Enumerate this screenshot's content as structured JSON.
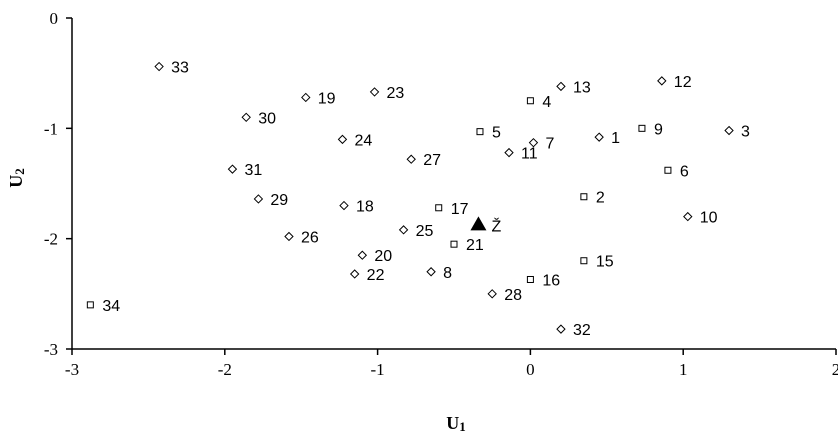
{
  "chart_data": {
    "type": "scatter",
    "xlabel_main": "U",
    "xlabel_sub": "1",
    "ylabel_main": "U",
    "ylabel_sub": "2",
    "xlim": [
      -3,
      2
    ],
    "ylim": [
      -3,
      0
    ],
    "x_ticks": [
      -3,
      -2,
      -1,
      0,
      1,
      2
    ],
    "y_ticks": [
      0,
      -1,
      -2,
      -3
    ],
    "grid": false,
    "points": [
      {
        "label": "1",
        "x": 0.45,
        "y": -1.08,
        "marker": "diamond"
      },
      {
        "label": "2",
        "x": 0.35,
        "y": -1.62,
        "marker": "square"
      },
      {
        "label": "3",
        "x": 1.3,
        "y": -1.02,
        "marker": "diamond"
      },
      {
        "label": "4",
        "x": 0.0,
        "y": -0.75,
        "marker": "square"
      },
      {
        "label": "5",
        "x": -0.33,
        "y": -1.03,
        "marker": "square"
      },
      {
        "label": "6",
        "x": 0.9,
        "y": -1.38,
        "marker": "square"
      },
      {
        "label": "7",
        "x": 0.02,
        "y": -1.13,
        "marker": "diamond"
      },
      {
        "label": "8",
        "x": -0.65,
        "y": -2.3,
        "marker": "diamond"
      },
      {
        "label": "9",
        "x": 0.73,
        "y": -1.0,
        "marker": "square"
      },
      {
        "label": "10",
        "x": 1.03,
        "y": -1.8,
        "marker": "diamond"
      },
      {
        "label": "11",
        "x": -0.14,
        "y": -1.22,
        "marker": "diamond"
      },
      {
        "label": "12",
        "x": 0.86,
        "y": -0.57,
        "marker": "diamond"
      },
      {
        "label": "13",
        "x": 0.2,
        "y": -0.62,
        "marker": "diamond"
      },
      {
        "label": "15",
        "x": 0.35,
        "y": -2.2,
        "marker": "square"
      },
      {
        "label": "16",
        "x": 0.0,
        "y": -2.37,
        "marker": "square"
      },
      {
        "label": "17",
        "x": -0.6,
        "y": -1.72,
        "marker": "square"
      },
      {
        "label": "18",
        "x": -1.22,
        "y": -1.7,
        "marker": "diamond"
      },
      {
        "label": "19",
        "x": -1.47,
        "y": -0.72,
        "marker": "diamond"
      },
      {
        "label": "20",
        "x": -1.1,
        "y": -2.15,
        "marker": "diamond"
      },
      {
        "label": "21",
        "x": -0.5,
        "y": -2.05,
        "marker": "square"
      },
      {
        "label": "22",
        "x": -1.15,
        "y": -2.32,
        "marker": "diamond"
      },
      {
        "label": "23",
        "x": -1.02,
        "y": -0.67,
        "marker": "diamond"
      },
      {
        "label": "24",
        "x": -1.23,
        "y": -1.1,
        "marker": "diamond"
      },
      {
        "label": "25",
        "x": -0.83,
        "y": -1.92,
        "marker": "diamond"
      },
      {
        "label": "26",
        "x": -1.58,
        "y": -1.98,
        "marker": "diamond"
      },
      {
        "label": "27",
        "x": -0.78,
        "y": -1.28,
        "marker": "diamond"
      },
      {
        "label": "28",
        "x": -0.25,
        "y": -2.5,
        "marker": "diamond"
      },
      {
        "label": "29",
        "x": -1.78,
        "y": -1.64,
        "marker": "diamond"
      },
      {
        "label": "30",
        "x": -1.86,
        "y": -0.9,
        "marker": "diamond"
      },
      {
        "label": "31",
        "x": -1.95,
        "y": -1.37,
        "marker": "diamond"
      },
      {
        "label": "32",
        "x": 0.2,
        "y": -2.82,
        "marker": "diamond"
      },
      {
        "label": "33",
        "x": -2.43,
        "y": -0.44,
        "marker": "diamond"
      },
      {
        "label": "34",
        "x": -2.88,
        "y": -2.6,
        "marker": "square"
      }
    ],
    "highlight_point": {
      "label": "Ž",
      "x": -0.34,
      "y": -1.87,
      "marker": "triangle",
      "color": "#000000"
    }
  }
}
